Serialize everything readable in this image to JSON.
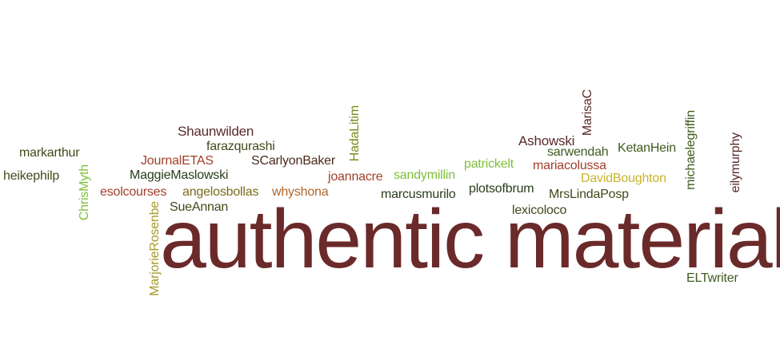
{
  "cloud": {
    "title": "authentic materials",
    "colors": {
      "maroon": "#6b2a2a",
      "dark_green": "#3f5a1f",
      "olive": "#7a6a1a",
      "light_green": "#7fbf3a",
      "brown": "#8a5a2a",
      "red_brown": "#a0402a"
    },
    "words": {
      "markarthur": "markarthur",
      "heikephilp": "heikephilp",
      "chrismyth": "ChrisMyth",
      "journaletas": "JournalETAS",
      "shaunwilden": "Shaunwilden",
      "farazqurashi": "farazqurashi",
      "maggiemaslowski": "MaggieMaslowski",
      "scarlyonbaker": "SCarlyonBaker",
      "esolcourses": "esolcourses",
      "angelosbollas": "angelosbollas",
      "whyshona": "whyshona",
      "sueannan": "SueAnnan",
      "marjorierosenbe": "MarjorieRosenbe",
      "hadalitim": "HadaLitim",
      "joannacre": "joannacre",
      "sandymillin": "sandymillin",
      "marcusmurilo": "marcusmurilo",
      "patrickelt": "patrickelt",
      "plotsofbrum": "plotsofbrum",
      "lexicoloco": "lexicoloco",
      "ashowski": "Ashowski",
      "marisac": "MarisaC",
      "sarwendah": "sarwendah",
      "mariacolussa": "mariacolussa",
      "davidboughton": "DavidBoughton",
      "mrslindaposp": "MrsLindaPosp",
      "ketanhein": "KetanHein",
      "michaelegriffin": "michaelegriffin",
      "eilymurphy": "eilymurphy",
      "eltwriter": "ELTwriter"
    }
  }
}
